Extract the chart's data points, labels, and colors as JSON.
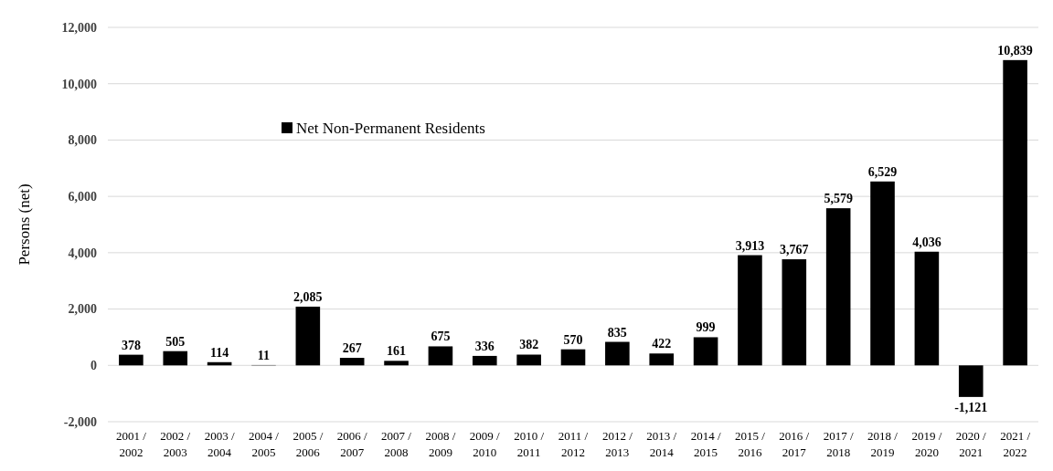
{
  "chart_data": {
    "type": "bar",
    "ylabel": "Persons (net)",
    "categories": [
      "2001 / 2002",
      "2002 / 2003",
      "2003 / 2004",
      "2004 / 2005",
      "2005 / 2006",
      "2006 / 2007",
      "2007 / 2008",
      "2008 / 2009",
      "2009 / 2010",
      "2010 / 2011",
      "2011 / 2012",
      "2012 / 2013",
      "2013 / 2014",
      "2014 / 2015",
      "2015 / 2016",
      "2016 / 2017",
      "2017 / 2018",
      "2018 / 2019",
      "2019 / 2020",
      "2020 / 2021",
      "2021 / 2022"
    ],
    "series": [
      {
        "name": "Net Non-Permanent Residents",
        "color": "#000000",
        "values": [
          378,
          505,
          114,
          11,
          2085,
          267,
          161,
          675,
          336,
          382,
          570,
          835,
          422,
          999,
          3913,
          3767,
          5579,
          6529,
          4036,
          -1121,
          10839
        ],
        "value_labels": [
          "378",
          "505",
          "114",
          "11",
          "2,085",
          "267",
          "161",
          "675",
          "336",
          "382",
          "570",
          "835",
          "422",
          "999",
          "3,913",
          "3,767",
          "5,579",
          "6,529",
          "4,036",
          "-1,121",
          "10,839"
        ]
      }
    ],
    "ylim": [
      -2000,
      12000
    ],
    "yticks": [
      {
        "value": -2000,
        "label": "-2,000"
      },
      0,
      {
        "value": 2000,
        "label": "2,000"
      },
      {
        "value": 4000,
        "label": "4,000"
      },
      {
        "value": 6000,
        "label": "6,000"
      },
      {
        "value": 8000,
        "label": "8,000"
      },
      {
        "value": 10000,
        "label": "10,000"
      },
      {
        "value": 12000,
        "label": "12,000"
      }
    ],
    "grid": "y",
    "legend": "top left"
  }
}
